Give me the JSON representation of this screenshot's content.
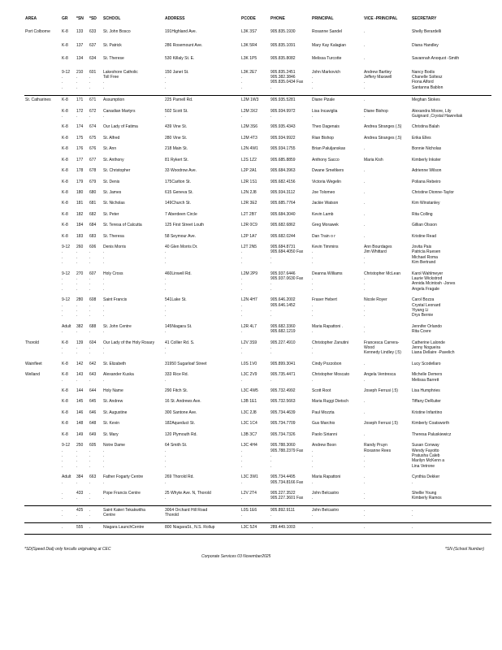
{
  "headers": [
    "AREA",
    "GR",
    "*SN",
    "*SD",
    "SCHOOL",
    "ADDRESS",
    "PCODE",
    "PHONE",
    "PRINCIPAL",
    "VICE -PRINCIPAL",
    "SECRETARY"
  ],
  "rows": [
    {
      "area": "Port Colborne",
      "gr": "K-8",
      "sn": "133",
      "sd": "633",
      "school": [
        "St. John Bosco"
      ],
      "address": [
        "191Highland Ave."
      ],
      "pcode": "L3K 3S7",
      "phone": [
        "905.835.1930"
      ],
      "principal": [
        "Rosanne Sandel"
      ],
      "vice": [
        "."
      ],
      "secretary": [
        "Shelly Berardelli"
      ]
    },
    {
      "area": "",
      "gr": "K-8",
      "sn": "137",
      "sd": "637",
      "school": [
        "St. Patrick"
      ],
      "address": [
        "286 Rosemount Ave."
      ],
      "pcode": "L3K 5R4",
      "phone": [
        "905.835.1091"
      ],
      "principal": [
        "Mary Kay Kalagian"
      ],
      "vice": [
        "."
      ],
      "secretary": [
        "Diana Handley"
      ]
    },
    {
      "area": "",
      "gr": "K-8",
      "sn": "134",
      "sd": "634",
      "school": [
        "St. Therese"
      ],
      "address": [
        "530 Killaly St. E."
      ],
      "pcode": "L3K 1P5",
      "phone": [
        "905.835.8082"
      ],
      "principal": [
        "Melissa Turcotte"
      ],
      "vice": [
        "."
      ],
      "secretary": [
        "Savannah Anoquot -Smith"
      ]
    },
    {
      "area": "",
      "gr": "9-12",
      "sn": "210",
      "sd": "601",
      "school": [
        "Lakeshore Catholic",
        "   Toll Free"
      ],
      "address": [
        "150 Janet St."
      ],
      "pcode": "L3K 2E7",
      "phone": [
        "905.835.2451",
        "905.382.3846",
        "905.835.0434  Fax"
      ],
      "principal": [
        "John Markovich"
      ],
      "vice": [
        "Andrew Bartley",
        "Jeffery Maxwell"
      ],
      "secretary": [
        "Nancy Bodis",
        "Chanelle Soltesz",
        "Fiona Alford",
        "Santanna Bablon"
      ]
    },
    {
      "area": "St. Catharines",
      "gr": "K-8",
      "sn": "171",
      "sd": "671",
      "school": [
        "Assumption"
      ],
      "address": [
        "225 Parnell Rd."
      ],
      "pcode": "L2M 1W3",
      "phone": [
        "905.935.5281"
      ],
      "principal": [
        "Diane Pizale"
      ],
      "vice": [
        "."
      ],
      "secretary": [
        "Meghan Stokes"
      ]
    },
    {
      "area": "",
      "gr": "K-8",
      "sn": "172",
      "sd": "672",
      "school": [
        "Canadian Martyrs"
      ],
      "address": [
        "502 Scott St."
      ],
      "pcode": "L2M 3X2",
      "phone": [
        "905.934.9972"
      ],
      "principal": [
        "Lisa Incaviglia"
      ],
      "vice": [
        "Diane Bishop"
      ],
      "secretary": [
        "Alexandra Moore, Lily",
        "Guignard ,Crystal Hawreliak"
      ]
    },
    {
      "area": "",
      "gr": "K-8",
      "sn": "174",
      "sd": "674",
      "school": [
        "Our Lady of Fatima"
      ],
      "address": [
        "439 Vine St."
      ],
      "pcode": "L2M 3S6",
      "phone": [
        "905.935.4343"
      ],
      "principal": [
        "Theo Dagenais"
      ],
      "vice": [
        "Andrea Stranges (.5)"
      ],
      "secretary": [
        "Christina Balah"
      ]
    },
    {
      "area": "",
      "gr": "K-8",
      "sn": "175",
      "sd": "675",
      "school": [
        "St. Alfred"
      ],
      "address": [
        "280 Vine St."
      ],
      "pcode": "L2M 4T3",
      "phone": [
        "905.934.9922"
      ],
      "principal": [
        "Rian Bishop"
      ],
      "vice": [
        "Andrea Stranges (.5)"
      ],
      "secretary": [
        "Erika Elles"
      ]
    },
    {
      "area": "",
      "gr": "K-8",
      "sn": "176",
      "sd": "676",
      "school": [
        "St. Ann"
      ],
      "address": [
        "218 Main St."
      ],
      "pcode": "L2N 4W1",
      "phone": [
        "905.934.1755"
      ],
      "principal": [
        "Brian Paluljanskas"
      ],
      "vice": [
        "."
      ],
      "secretary": [
        "Bonnie Nicholas"
      ]
    },
    {
      "area": "",
      "gr": "K-8",
      "sn": "177",
      "sd": "677",
      "school": [
        "St. Anthony"
      ],
      "address": [
        "81 Rykert St."
      ],
      "pcode": "L2S 1Z2",
      "phone": [
        "905.685.8859"
      ],
      "principal": [
        "Anthony Sacco"
      ],
      "vice": [
        "Maria Kish"
      ],
      "secretary": [
        "Kimberly Inkster"
      ]
    },
    {
      "area": "",
      "gr": "K-8",
      "sn": "178",
      "sd": "678",
      "school": [
        "St. Christopher"
      ],
      "address": [
        "33 Woodrow Ave."
      ],
      "pcode": "L2P 2A1",
      "phone": [
        "905.684.3963"
      ],
      "principal": [
        "Dwane Smeltkers"
      ],
      "vice": [
        "."
      ],
      "secretary": [
        "Adrienne Wilson"
      ]
    },
    {
      "area": "",
      "gr": "K-8",
      "sn": "179",
      "sd": "679",
      "school": [
        "St. Denis"
      ],
      "address": [
        "175Carlton St."
      ],
      "pcode": "L2R 1S1",
      "phone": [
        "905.682.4156"
      ],
      "principal": [
        "Victoria Wegelin"
      ],
      "vice": [
        "."
      ],
      "secretary": [
        "Poliana Rebeiro"
      ]
    },
    {
      "area": "",
      "gr": "K-8",
      "sn": "180",
      "sd": "680",
      "school": [
        "St. James"
      ],
      "address": [
        "615 Geneva St."
      ],
      "pcode": "L2N 2J8",
      "phone": [
        "905.934.3112"
      ],
      "principal": [
        "Joe Tolomeo"
      ],
      "vice": [
        "."
      ],
      "secretary": [
        "Christine Dionne-Taylor"
      ]
    },
    {
      "area": "",
      "gr": "K-8",
      "sn": "181",
      "sd": "681",
      "school": [
        "St. Nicholas"
      ],
      "address": [
        "149Church St."
      ],
      "pcode": "L2R 3E2",
      "phone": [
        "905.685.7764"
      ],
      "principal": [
        "Jackie Watson"
      ],
      "vice": [
        "."
      ],
      "secretary": [
        "Kim Winstanley"
      ]
    },
    {
      "area": "",
      "gr": "K-8",
      "sn": "182",
      "sd": "682",
      "school": [
        "St. Peter"
      ],
      "address": [
        "7 Aberdeen Circle"
      ],
      "pcode": "L2T 2B7",
      "phone": [
        "905.684.3040"
      ],
      "principal": [
        "Kevin Lamb"
      ],
      "vice": [
        "."
      ],
      "secretary": [
        "Rita Colling"
      ]
    },
    {
      "area": "",
      "gr": "K-8",
      "sn": "184",
      "sd": "684",
      "school": [
        "St. Teresa of Calcutta"
      ],
      "address": [
        "125 First Street Louth"
      ],
      "pcode": "L2R 0C9",
      "phone": [
        "905.682.6862"
      ],
      "principal": [
        "Greg Morawek"
      ],
      "vice": [
        "."
      ],
      "secretary": [
        "Gillian Olsson"
      ]
    },
    {
      "area": "",
      "gr": "K-8",
      "sn": "183",
      "sd": "683",
      "school": [
        "St. Theresa"
      ],
      "address": [
        "58 Seymour Ave."
      ],
      "pcode": "L2P 1A7",
      "phone": [
        "905.682.0244"
      ],
      "principal": [
        "Dan Train o r"
      ],
      "vice": [
        "."
      ],
      "secretary": [
        "Kristine Read"
      ]
    },
    {
      "area": "",
      "gr": "9-12",
      "sn": "260",
      "sd": "606",
      "school": [
        "Denis Morris"
      ],
      "address": [
        "40 Glen Morris Dr."
      ],
      "pcode": "L2T 2N5",
      "phone": [
        "905.684.8731",
        "905.684.4050  Fax"
      ],
      "principal": [
        "Kevin Timmins"
      ],
      "vice": [
        "Ann Bourdages",
        "Jim Whittard"
      ],
      "secretary": [
        "Jovita Pais",
        "Patricia Ruesen",
        "Michael Roma",
        "Kim Bertrand"
      ]
    },
    {
      "area": "",
      "gr": "9-12",
      "sn": "270",
      "sd": "607",
      "school": [
        "Holy Cross"
      ],
      "address": [
        "460Linwell Rd."
      ],
      "pcode": "L2M 2P9",
      "phone": [
        "905.937.6446",
        "905.937.0630  Fax"
      ],
      "principal": [
        "Deanna Williams"
      ],
      "vice": [
        "Christopher McLean"
      ],
      "secretary": [
        "Karol Wahlmeyer",
        "Laurie Wickstrod",
        "Annida Mcintosh -Jones",
        "Angela Fragale"
      ]
    },
    {
      "area": "",
      "gr": "9-12",
      "sn": "280",
      "sd": "608",
      "school": [
        "Saint Francis"
      ],
      "address": [
        "541Lake St."
      ],
      "pcode": "L2N 4H7",
      "phone": [
        "905.646.2002",
        "905.646.1452"
      ],
      "principal": [
        "Fraser Hebert"
      ],
      "vice": [
        "Nicole Royer"
      ],
      "secretary": [
        "Carol Bozza",
        "Crystal Leonard",
        "Yiyang Li",
        "Drys Bernie"
      ]
    },
    {
      "area": "",
      "gr": "Adult",
      "sn": "382",
      "sd": "688",
      "school": [
        "St. John Centre"
      ],
      "address": [
        "145Niagara St."
      ],
      "pcode": "L2R 4L7",
      "phone": [
        "905.682.3360",
        "905.682.1219"
      ],
      "principal": [
        "Maria Rapattoni ."
      ],
      "vice": [
        "."
      ],
      "secretary": [
        "Jennifer Orlando",
        "Rita Covre"
      ]
    },
    {
      "area": "Thorold",
      "gr": "K-8",
      "sn": "139",
      "sd": "604",
      "school": [
        "Our Lady of the Holy Rosary"
      ],
      "address": [
        "41 Collier Rd. S."
      ],
      "pcode": "L2V 3S9",
      "phone": [
        "905.227.4910"
      ],
      "principal": [
        "Christopher Zanutini"
      ],
      "vice": [
        "Francesca Carrera-",
        "Wood",
        "Kennedy Lindley (.5)"
      ],
      "secretary": [
        "Catherine Lalonde",
        "Jenny Nogueira",
        "Liana Dellaire -Pavelich"
      ]
    },
    {
      "area": "Wainfleet",
      "gr": "K-8",
      "sn": "142",
      "sd": "642",
      "school": [
        "St. Elizabeth"
      ],
      "address": [
        "31950 Sugarloaf Street"
      ],
      "pcode": "L0S 1V0",
      "phone": [
        "905.899.3041"
      ],
      "principal": [
        "Cindy Pozzobon"
      ],
      "vice": [
        "."
      ],
      "secretary": [
        "Lucy Scodellaro"
      ]
    },
    {
      "area": "Welland",
      "gr": "K-8",
      "sn": "143",
      "sd": "643",
      "school": [
        "Alexander Kuska"
      ],
      "address": [
        "333 Rice Rd."
      ],
      "pcode": "L3C 2V9",
      "phone": [
        "905.735.4471"
      ],
      "principal": [
        "Christopher Moscato"
      ],
      "vice": [
        "Angela Ventresca"
      ],
      "secretary": [
        "Michelle Demers",
        "Melissa Barrett"
      ]
    },
    {
      "area": "",
      "gr": "K-8",
      "sn": "144",
      "sd": "644",
      "school": [
        "Holy Name"
      ],
      "address": [
        "290 Fitch St."
      ],
      "pcode": "L3C 4W5",
      "phone": [
        "905.732.4992"
      ],
      "principal": [
        "Scott Root"
      ],
      "vice": [
        "Joseph Ferrusi (.5)"
      ],
      "secretary": [
        "Lisa Humphries"
      ]
    },
    {
      "area": "",
      "gr": "K-8",
      "sn": "145",
      "sd": "645",
      "school": [
        "St. Andrew"
      ],
      "address": [
        "16 St. Andrews Ave."
      ],
      "pcode": "L3B 1E1",
      "phone": [
        "905.732.5663"
      ],
      "principal": [
        "Maria Ruggi Dietsch"
      ],
      "vice": [
        "."
      ],
      "secretary": [
        "Tiffany DeRuiter"
      ]
    },
    {
      "area": "",
      "gr": "K-8",
      "sn": "146",
      "sd": "646",
      "school": [
        "St. Augustine"
      ],
      "address": [
        "300 Santone Ave."
      ],
      "pcode": "L3C 2J8",
      "phone": [
        "905.734.4639"
      ],
      "principal": [
        "Paul Mozzta"
      ],
      "vice": [
        "."
      ],
      "secretary": [
        "Kristine Infantino"
      ]
    },
    {
      "area": "",
      "gr": "K-8",
      "sn": "148",
      "sd": "648",
      "school": [
        "St. Kevin"
      ],
      "address": [
        "182Aqueduct St."
      ],
      "pcode": "L3C 1C4",
      "phone": [
        "905.734.7709"
      ],
      "principal": [
        "Gus Marchio"
      ],
      "vice": [
        "Joseph Ferrusi (.5)"
      ],
      "secretary": [
        "Kimberly Coatsworth"
      ]
    },
    {
      "area": "",
      "gr": "K-8",
      "sn": "149",
      "sd": "649",
      "school": [
        "St. Mary"
      ],
      "address": [
        "120 Plymouth Rd."
      ],
      "pcode": "L3B 3C7",
      "phone": [
        "905.734.7326"
      ],
      "principal": [
        "Paolo Sirianni"
      ],
      "vice": [
        "."
      ],
      "secretary": [
        "Theresa Paluskiewicz"
      ]
    },
    {
      "area": "",
      "gr": "9-12",
      "sn": "250",
      "sd": "605",
      "school": [
        "Notre Dame"
      ],
      "address": [
        "64 Smith St."
      ],
      "pcode": "L3C 4H4",
      "phone": [
        "905.788.3060",
        "905.788.2379  Fax"
      ],
      "principal": [
        "Andrew Boon"
      ],
      "vice": [
        "Randy Pruyn",
        "Roxanne Rees"
      ],
      "secretary": [
        "Susan Conway",
        "Wendy Fayotto",
        "Pratusha Caleb",
        "Marilyn McKenn a",
        "Lina Vetrone"
      ]
    },
    {
      "area": "",
      "gr": "Adult",
      "sn": "384",
      "sd": "663",
      "school": [
        "Father Fogarty Centre"
      ],
      "address": [
        "269 Thorold Rd."
      ],
      "pcode": "L3C 3W1",
      "phone": [
        "905.734.4495",
        "905.734.8166  Fax"
      ],
      "principal": [
        "Maria Rapattoni"
      ],
      "vice": [
        "."
      ],
      "secretary": [
        "Cynthia Dekker"
      ]
    },
    {
      "area": "",
      "gr": ".",
      "sn": "433",
      "sd": ".",
      "school": [
        "Pope Francis Centre"
      ],
      "address": [
        "25 Whyte Ave. N, Thorold"
      ],
      "pcode": "L2V 2T4",
      "phone": [
        "905.227.3522",
        "905.227.3601 Fax"
      ],
      "principal": [
        "John Belcastro"
      ],
      "vice": [
        "."
      ],
      "secretary": [
        "Shellie Young",
        "Kimberly Ramos"
      ]
    },
    {
      "area": "",
      "gr": ".",
      "sn": "425",
      "sd": ".",
      "school": [
        "Saint Kateri Tekakwitha",
        "Centre"
      ],
      "address": [
        "3064 Orchard Hill Road",
        "Thorold"
      ],
      "pcode": "L0S 1E6",
      "phone": [
        "905.892.9111"
      ],
      "principal": [
        "John Belcastro"
      ],
      "vice": [
        "."
      ],
      "secretary": [
        "."
      ]
    },
    {
      "area": "",
      "gr": ".",
      "sn": "555",
      "sd": ".",
      "school": [
        "Niagara LaunchCentre"
      ],
      "address": [
        "800 NiagaraSt.,  N.S. Rollup"
      ],
      "pcode": "L3C 5Z4",
      "phone": [
        "289.449.1003"
      ],
      "principal": [
        "."
      ],
      "vice": [
        "."
      ],
      "secretary": [
        "."
      ]
    }
  ],
  "footer": {
    "sd_note": "*SD(Speed Dial) only forcalls originating at CEC",
    "sn_note": "*SN (School Number)",
    "center": "Corporate Services   03 November2025"
  }
}
